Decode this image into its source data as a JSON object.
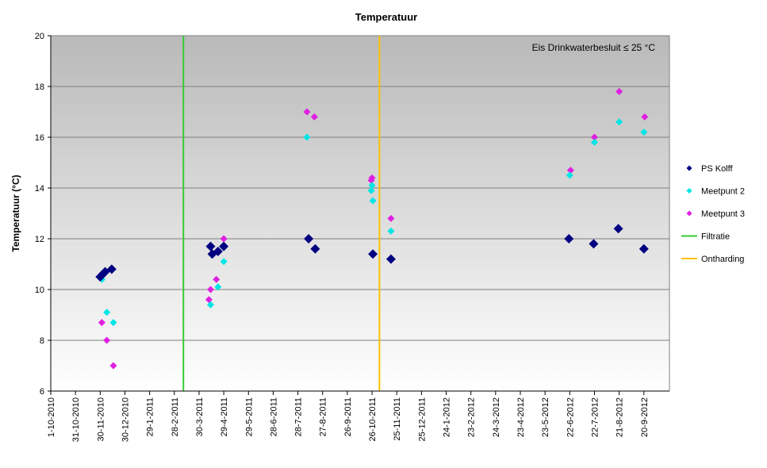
{
  "chart_data": {
    "type": "scatter",
    "title": "Temperatuur",
    "xlabel": "",
    "ylabel": "Temperatuur (°C)",
    "ylim": [
      6,
      20
    ],
    "yticks": [
      6,
      8,
      10,
      12,
      14,
      16,
      18,
      20
    ],
    "xlim": [
      "2010-10-01",
      "2012-10-21"
    ],
    "xticks": [
      "1-10-2010",
      "31-10-2010",
      "30-11-2010",
      "30-12-2010",
      "29-1-2011",
      "28-2-2011",
      "30-3-2011",
      "29-4-2011",
      "29-5-2011",
      "28-6-2011",
      "28-7-2011",
      "27-8-2011",
      "26-9-2011",
      "26-10-2011",
      "25-11-2011",
      "25-12-2011",
      "24-1-2012",
      "23-2-2012",
      "24-3-2012",
      "23-4-2012",
      "23-5-2012",
      "22-6-2012",
      "22-7-2012",
      "21-8-2012",
      "20-9-2012"
    ],
    "grid": true,
    "legend_position": "right",
    "annotation": "Eis Drinkwaterbesluit ≤ 25 °C",
    "background": "gradient-gray",
    "series": [
      {
        "name": "PS Kolff",
        "color": "#000080",
        "marker": "diamond-large",
        "points": [
          {
            "x": "2010-11-30",
            "y": 10.5
          },
          {
            "x": "2010-12-03",
            "y": 10.6
          },
          {
            "x": "2010-12-06",
            "y": 10.7
          },
          {
            "x": "2010-12-14",
            "y": 10.8
          },
          {
            "x": "2011-04-13",
            "y": 11.7
          },
          {
            "x": "2011-04-15",
            "y": 11.4
          },
          {
            "x": "2011-04-22",
            "y": 11.5
          },
          {
            "x": "2011-04-29",
            "y": 11.7
          },
          {
            "x": "2011-08-10",
            "y": 12.0
          },
          {
            "x": "2011-08-18",
            "y": 11.6
          },
          {
            "x": "2011-10-27",
            "y": 11.4
          },
          {
            "x": "2011-11-18",
            "y": 11.2
          },
          {
            "x": "2012-06-21",
            "y": 12.0
          },
          {
            "x": "2012-07-21",
            "y": 11.8
          },
          {
            "x": "2012-08-20",
            "y": 12.4
          },
          {
            "x": "2012-09-20",
            "y": 11.6
          }
        ]
      },
      {
        "name": "Meetpunt 2",
        "color": "#00E5E5",
        "marker": "diamond",
        "points": [
          {
            "x": "2010-12-02",
            "y": 10.4
          },
          {
            "x": "2010-12-08",
            "y": 9.1
          },
          {
            "x": "2010-12-16",
            "y": 8.7
          },
          {
            "x": "2011-04-13",
            "y": 9.4
          },
          {
            "x": "2011-04-22",
            "y": 10.1
          },
          {
            "x": "2011-04-29",
            "y": 11.1
          },
          {
            "x": "2011-08-08",
            "y": 16.0
          },
          {
            "x": "2011-10-25",
            "y": 13.9
          },
          {
            "x": "2011-10-26",
            "y": 14.1
          },
          {
            "x": "2011-10-27",
            "y": 13.5
          },
          {
            "x": "2011-11-18",
            "y": 12.3
          },
          {
            "x": "2012-06-22",
            "y": 14.5
          },
          {
            "x": "2012-07-22",
            "y": 15.8
          },
          {
            "x": "2012-08-21",
            "y": 16.6
          },
          {
            "x": "2012-09-20",
            "y": 16.2
          }
        ]
      },
      {
        "name": "Meetpunt 3",
        "color": "#E020E0",
        "marker": "diamond",
        "points": [
          {
            "x": "2010-12-02",
            "y": 8.7
          },
          {
            "x": "2010-12-08",
            "y": 8.0
          },
          {
            "x": "2010-12-16",
            "y": 7.0
          },
          {
            "x": "2011-04-11",
            "y": 9.6
          },
          {
            "x": "2011-04-13",
            "y": 10.0
          },
          {
            "x": "2011-04-20",
            "y": 10.4
          },
          {
            "x": "2011-04-29",
            "y": 12.0
          },
          {
            "x": "2011-08-08",
            "y": 17.0
          },
          {
            "x": "2011-08-17",
            "y": 16.8
          },
          {
            "x": "2011-10-25",
            "y": 14.3
          },
          {
            "x": "2011-10-26",
            "y": 14.4
          },
          {
            "x": "2011-11-18",
            "y": 12.8
          },
          {
            "x": "2012-06-23",
            "y": 14.7
          },
          {
            "x": "2012-07-22",
            "y": 16.0
          },
          {
            "x": "2012-08-21",
            "y": 17.8
          },
          {
            "x": "2012-09-21",
            "y": 16.8
          }
        ]
      }
    ],
    "vlines": [
      {
        "name": "Filtratie",
        "x": "2011-03-11",
        "color": "#33CC33"
      },
      {
        "name": "Ontharding",
        "x": "2011-11-04",
        "color": "#FFC000"
      }
    ]
  }
}
